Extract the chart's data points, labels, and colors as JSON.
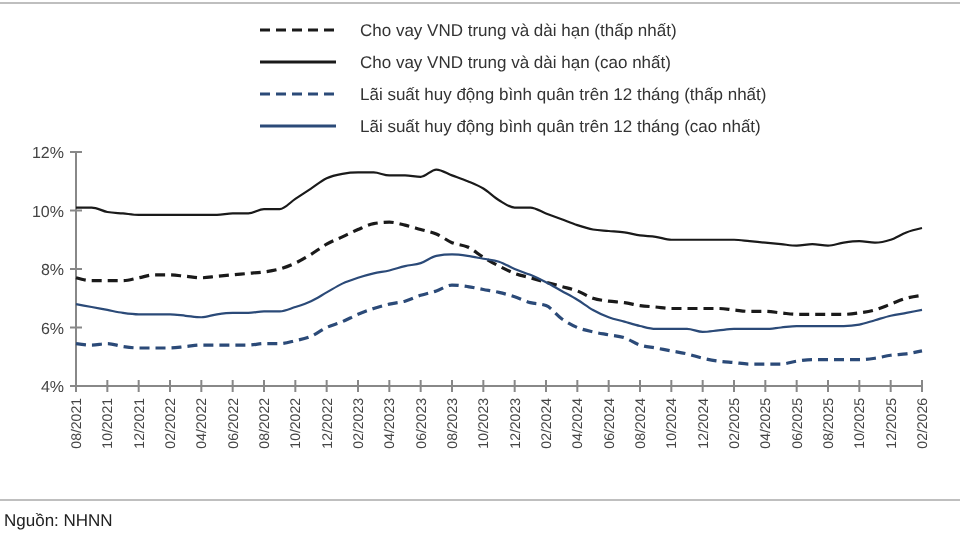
{
  "chart_data": {
    "type": "line",
    "categories": [
      "08/2021",
      null,
      "10/2021",
      null,
      "12/2021",
      null,
      "02/2022",
      null,
      "04/2022",
      null,
      "06/2022",
      null,
      "08/2022",
      null,
      "10/2022",
      null,
      "12/2022",
      null,
      "02/2023",
      null,
      "04/2023",
      null,
      "06/2023",
      null,
      "08/2023",
      null,
      "10/2023",
      null,
      "12/2023",
      null,
      "02/2024",
      null,
      "04/2024",
      null,
      "06/2024",
      null,
      "08/2024",
      null,
      "10/2024",
      null,
      "12/2024",
      null,
      "02/2025",
      null,
      "04/2025",
      null,
      "06/2025",
      null,
      "08/2025",
      null,
      "10/2025",
      null,
      "12/2025",
      null,
      "02/2026"
    ],
    "series": [
      {
        "name": "Cho vay VND trung và dài hạn (thấp nhất)",
        "color": "#1a1a1a",
        "line_style": "dashed",
        "values": [
          7.7,
          7.6,
          7.6,
          7.6,
          7.7,
          7.8,
          7.8,
          7.75,
          7.7,
          7.75,
          7.8,
          7.85,
          7.9,
          8.0,
          8.2,
          8.5,
          8.85,
          9.1,
          9.35,
          9.55,
          9.6,
          9.5,
          9.35,
          9.2,
          8.9,
          8.75,
          8.4,
          8.1,
          7.85,
          7.7,
          7.55,
          7.4,
          7.25,
          7.0,
          6.9,
          6.85,
          6.75,
          6.7,
          6.65,
          6.65,
          6.65,
          6.65,
          6.6,
          6.55,
          6.55,
          6.5,
          6.45,
          6.45,
          6.45,
          6.45,
          6.5,
          6.6,
          6.8,
          7.0,
          7.1
        ]
      },
      {
        "name": "Cho vay VND trung và dài hạn (cao nhất)",
        "color": "#1a1a1a",
        "line_style": "solid",
        "values": [
          10.1,
          10.1,
          9.95,
          9.9,
          9.85,
          9.85,
          9.85,
          9.85,
          9.85,
          9.85,
          9.9,
          9.9,
          10.05,
          10.05,
          10.4,
          10.75,
          11.1,
          11.25,
          11.3,
          11.3,
          11.2,
          11.2,
          11.15,
          11.4,
          11.2,
          11.0,
          10.75,
          10.35,
          10.1,
          10.1,
          9.9,
          9.7,
          9.5,
          9.35,
          9.3,
          9.25,
          9.15,
          9.1,
          9.0,
          9.0,
          9.0,
          9.0,
          9.0,
          8.95,
          8.9,
          8.85,
          8.8,
          8.85,
          8.8,
          8.9,
          8.95,
          8.9,
          9.0,
          9.25,
          9.4
        ]
      },
      {
        "name": "Lãi suất huy động bình quân trên 12 tháng (thấp nhất)",
        "color": "#2b4a78",
        "line_style": "dashed",
        "values": [
          5.45,
          5.4,
          5.45,
          5.35,
          5.3,
          5.3,
          5.3,
          5.35,
          5.4,
          5.4,
          5.4,
          5.4,
          5.45,
          5.45,
          5.55,
          5.7,
          6.0,
          6.2,
          6.45,
          6.65,
          6.8,
          6.9,
          7.1,
          7.25,
          7.45,
          7.4,
          7.3,
          7.2,
          7.05,
          6.85,
          6.75,
          6.3,
          6.0,
          5.85,
          5.75,
          5.65,
          5.4,
          5.3,
          5.2,
          5.1,
          4.95,
          4.85,
          4.8,
          4.75,
          4.75,
          4.75,
          4.85,
          4.9,
          4.9,
          4.9,
          4.9,
          4.95,
          5.05,
          5.1,
          5.2
        ]
      },
      {
        "name": "Lãi suất huy động bình quân trên 12 tháng (cao nhất)",
        "color": "#2b4a78",
        "line_style": "solid",
        "values": [
          6.8,
          6.7,
          6.6,
          6.5,
          6.45,
          6.45,
          6.45,
          6.4,
          6.35,
          6.45,
          6.5,
          6.5,
          6.55,
          6.55,
          6.7,
          6.9,
          7.2,
          7.5,
          7.7,
          7.85,
          7.95,
          8.1,
          8.2,
          8.45,
          8.5,
          8.45,
          8.35,
          8.25,
          8.0,
          7.8,
          7.55,
          7.25,
          6.95,
          6.6,
          6.35,
          6.2,
          6.05,
          5.95,
          5.95,
          5.95,
          5.85,
          5.9,
          5.95,
          5.95,
          5.95,
          6.0,
          6.05,
          6.05,
          6.05,
          6.05,
          6.1,
          6.25,
          6.4,
          6.5,
          6.6
        ]
      }
    ],
    "ylim": [
      4,
      12
    ],
    "yticks": [
      {
        "value": 4,
        "label": "4%"
      },
      {
        "value": 6,
        "label": "6%"
      },
      {
        "value": 8,
        "label": "8%"
      },
      {
        "value": 10,
        "label": "10%"
      },
      {
        "value": 12,
        "label": "12%"
      }
    ],
    "grid": false,
    "legend": "top",
    "marker": "none",
    "annotations": [
      "Nguồn: NHNN"
    ]
  }
}
